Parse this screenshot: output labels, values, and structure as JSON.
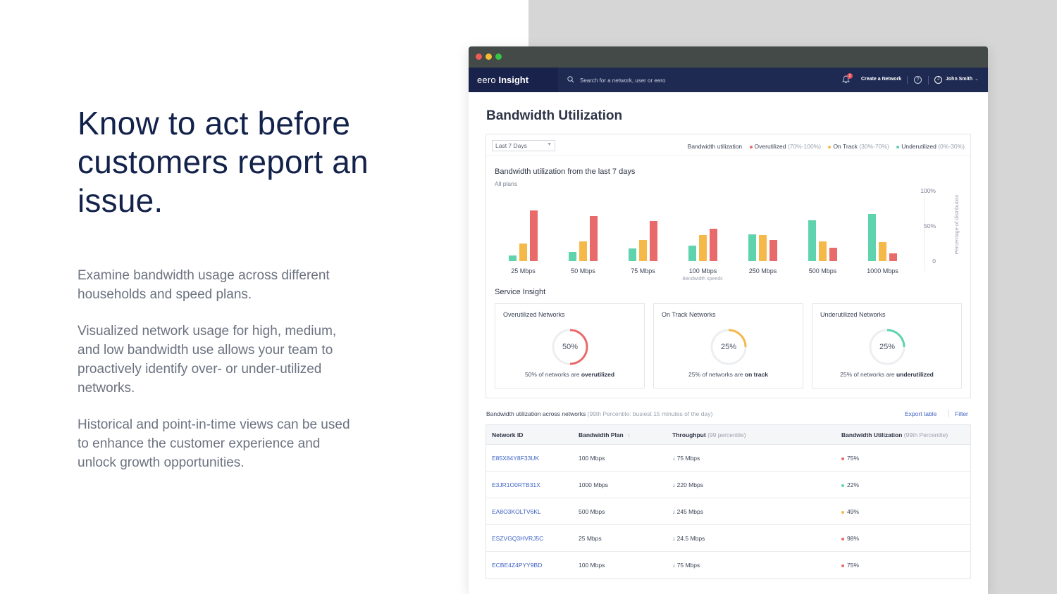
{
  "marketing": {
    "headline": "Know to act before customers report an issue.",
    "paragraphs": [
      "Examine bandwidth usage across different households and speed plans.",
      "Visualized network usage for high, medium, and low bandwidth use allows your team to proactively identify over- or under-utilized networks.",
      "Historical and point-in-time views can be used to enhance the customer experience and unlock growth opportunities."
    ]
  },
  "app": {
    "brand_light": "eero",
    "brand_bold": "Insight",
    "search_placeholder": "Search for a network, user or eero",
    "notification_count": "2",
    "create_network": "Create a Network",
    "help": "?",
    "user_initial": "J",
    "user_name": "John Smith"
  },
  "page": {
    "title": "Bandwidth Utilization"
  },
  "filter": {
    "range": "Last 7 Days"
  },
  "legend": {
    "title": "Bandwidth utilization",
    "items": [
      {
        "label": "Overutilized",
        "range": "(70%-100%)",
        "color": "#e96a6a"
      },
      {
        "label": "On Track",
        "range": "(30%-70%)",
        "color": "#f5b94a"
      },
      {
        "label": "Underutilized",
        "range": "(0%-30%)",
        "color": "#5fd3ae"
      }
    ]
  },
  "chart_data": {
    "type": "bar",
    "title": "Bandwidth utilization from the last 7 days",
    "subtitle": "All plans",
    "xlabel": "Bandwidth speeds",
    "ylabel": "Percentage of distribution",
    "yticks": [
      "100%",
      "50%",
      "0"
    ],
    "ylim": [
      0,
      100
    ],
    "categories": [
      "25 Mbps",
      "50 Mbps",
      "75 Mbps",
      "100 Mbps",
      "250 Mbps",
      "500 Mbps",
      "1000 Mbps"
    ],
    "series": [
      {
        "name": "Underutilized",
        "color": "#5fd3ae",
        "values": [
          8,
          13,
          18,
          22,
          38,
          58,
          67
        ]
      },
      {
        "name": "On Track",
        "color": "#f5b94a",
        "values": [
          25,
          28,
          30,
          37,
          37,
          28,
          27
        ]
      },
      {
        "name": "Overutilized",
        "color": "#e96a6a",
        "values": [
          72,
          64,
          57,
          46,
          30,
          19,
          11
        ]
      }
    ]
  },
  "service_insight": {
    "title": "Service Insight",
    "cards": [
      {
        "label": "Overutilized Networks",
        "percent": 50,
        "percent_text": "50%",
        "caption_prefix": "50% of networks are",
        "caption_bold": "overutilized",
        "color": "#e96a6a"
      },
      {
        "label": "On Track Networks",
        "percent": 25,
        "percent_text": "25%",
        "caption_prefix": "25% of networks are",
        "caption_bold": "on track",
        "color": "#f5b94a"
      },
      {
        "label": "Underutilized Networks",
        "percent": 25,
        "percent_text": "25%",
        "caption_prefix": "25% of networks are",
        "caption_bold": "underutilized",
        "color": "#5fd3ae"
      }
    ]
  },
  "table": {
    "caption": "Bandwidth utilization across networks",
    "caption_muted": "(99th Percentile: busiest 15 minutes of the day)",
    "export": "Export table",
    "filter": "Filter",
    "headers": {
      "network_id": "Network ID",
      "plan": "Bandwidth Plan",
      "sort_icon": "↕",
      "throughput": "Throughput",
      "throughput_muted": "(99 percentile)",
      "utilization": "Bandwidth Utilization",
      "utilization_muted": "(99th Percentile)"
    },
    "rows": [
      {
        "id": "E85X84Y8F33UK",
        "plan": "100 Mbps",
        "throughput": "↓ 75 Mbps",
        "utilization": "75%",
        "color": "#e96a6a"
      },
      {
        "id": "E3JR1O0RTB31X",
        "plan": "1000 Mbps",
        "throughput": "↓ 220 Mbps",
        "utilization": "22%",
        "color": "#5fd3ae"
      },
      {
        "id": "EA8O3KOLTV6KL",
        "plan": "500 Mbps",
        "throughput": "↓ 245 Mbps",
        "utilization": "49%",
        "color": "#f5b94a"
      },
      {
        "id": "ESZVGQ3HVRJ5C",
        "plan": "25 Mbps",
        "throughput": "↓ 24.5 Mbps",
        "utilization": "98%",
        "color": "#e96a6a"
      },
      {
        "id": "ECBE4Z4PYY9BD",
        "plan": "100 Mbps",
        "throughput": "↓ 75 Mbps",
        "utilization": "75%",
        "color": "#e96a6a"
      }
    ]
  }
}
